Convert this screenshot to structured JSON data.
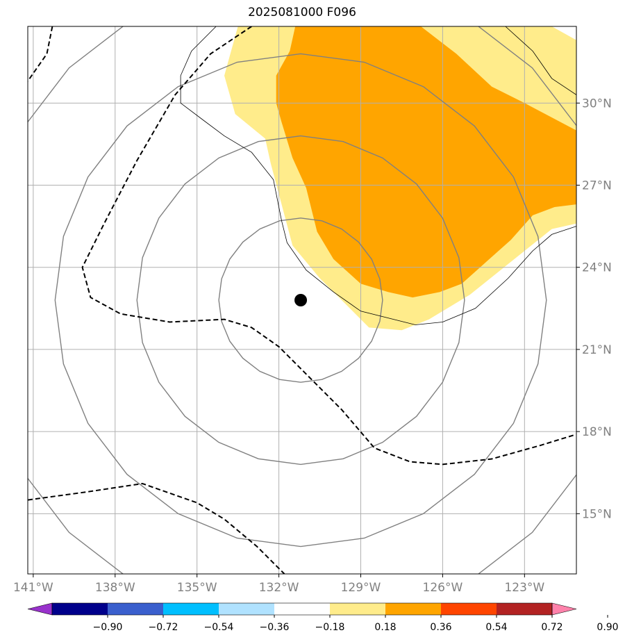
{
  "chart_data": {
    "type": "map-contour",
    "title": "2025081000 F096",
    "x_ticks": [
      "141°W",
      "138°W",
      "135°W",
      "132°W",
      "129°W",
      "126°W",
      "123°W"
    ],
    "x_tick_values": [
      -141,
      -138,
      -135,
      -132,
      -129,
      -126,
      -123
    ],
    "y_ticks": [
      "30°N",
      "27°N",
      "24°N",
      "21°N",
      "18°N",
      "15°N"
    ],
    "y_tick_values": [
      30,
      27,
      24,
      21,
      18,
      15
    ],
    "xlim": [
      -141.2,
      -121.1
    ],
    "ylim": [
      12.8,
      32.8
    ],
    "grid": true,
    "storm_center": {
      "lon": -131.2,
      "lat": 22.8
    },
    "range_rings_deg": [
      3,
      6,
      9,
      12
    ],
    "colorbar": {
      "labels": [
        "−0.90",
        "−0.72",
        "−0.54",
        "−0.36",
        "−0.18",
        "0.18",
        "0.36",
        "0.54",
        "0.72",
        "0.90"
      ],
      "values": [
        -0.9,
        -0.72,
        -0.54,
        -0.36,
        -0.18,
        0.18,
        0.36,
        0.54,
        0.72,
        0.9
      ],
      "colors": [
        "#9932cc",
        "#00008b",
        "#3a5fcd",
        "#00bfff",
        "#b0e2ff",
        "#ffffff",
        "#ffec8b",
        "#ffa500",
        "#ff4500",
        "#b22222",
        "#ff82ab"
      ]
    },
    "filled_regions": [
      {
        "level": "0.18–0.36",
        "color": "#ffec8b",
        "points": [
          [
            -133.5,
            32.8
          ],
          [
            -122,
            32.8
          ],
          [
            -121.1,
            32.3
          ],
          [
            -121.1,
            25.6
          ],
          [
            -122,
            25.4
          ],
          [
            -123,
            24.6
          ],
          [
            -124,
            23.8
          ],
          [
            -125,
            23.0
          ],
          [
            -126.5,
            22.1
          ],
          [
            -127.5,
            21.7
          ],
          [
            -128.7,
            21.8
          ],
          [
            -129.5,
            22.6
          ],
          [
            -130.5,
            23.6
          ],
          [
            -131.5,
            24.8
          ],
          [
            -132.3,
            27.8
          ],
          [
            -132.5,
            28.7
          ],
          [
            -133.6,
            29.6
          ],
          [
            -134.0,
            31.0
          ],
          [
            -133.5,
            32.8
          ]
        ]
      },
      {
        "level": "0.36–0.54",
        "color": "#ffa500",
        "points": [
          [
            -131.4,
            32.8
          ],
          [
            -126.8,
            32.8
          ],
          [
            -125.5,
            31.8
          ],
          [
            -124.2,
            30.6
          ],
          [
            -123.0,
            30.0
          ],
          [
            -121.1,
            29.0
          ],
          [
            -121.1,
            26.3
          ],
          [
            -121.9,
            26.2
          ],
          [
            -122.7,
            25.9
          ],
          [
            -123.5,
            25.0
          ],
          [
            -124.4,
            24.2
          ],
          [
            -125.3,
            23.4
          ],
          [
            -126.1,
            23.1
          ],
          [
            -127.1,
            22.9
          ],
          [
            -128.0,
            23.1
          ],
          [
            -129.0,
            23.4
          ],
          [
            -130.0,
            24.3
          ],
          [
            -130.6,
            25.3
          ],
          [
            -131.0,
            26.9
          ],
          [
            -131.5,
            28.0
          ],
          [
            -131.9,
            29.3
          ],
          [
            -132.1,
            30.0
          ],
          [
            -132.1,
            31.0
          ],
          [
            -131.6,
            31.9
          ],
          [
            -131.4,
            32.8
          ]
        ]
      }
    ],
    "line_contours": [
      {
        "style": "thin-black",
        "points": [
          [
            -134.3,
            32.8
          ],
          [
            -135.2,
            31.9
          ],
          [
            -135.6,
            31.0
          ],
          [
            -135.6,
            30.0
          ],
          [
            -134.8,
            29.4
          ],
          [
            -134.0,
            28.8
          ],
          [
            -133.0,
            28.2
          ],
          [
            -132.2,
            27.2
          ],
          [
            -131.9,
            25.7
          ],
          [
            -131.7,
            24.9
          ],
          [
            -131.0,
            23.9
          ],
          [
            -130.0,
            23.1
          ],
          [
            -129.0,
            22.4
          ],
          [
            -127.0,
            21.9
          ],
          [
            -126.0,
            22.0
          ],
          [
            -124.8,
            22.5
          ],
          [
            -123.6,
            23.6
          ],
          [
            -122.7,
            24.6
          ],
          [
            -122.0,
            25.2
          ],
          [
            -121.1,
            25.5
          ]
        ]
      },
      {
        "style": "thin-black",
        "points": [
          [
            -123.7,
            32.8
          ],
          [
            -122.7,
            31.9
          ],
          [
            -122.0,
            30.9
          ],
          [
            -121.1,
            30.3
          ]
        ]
      },
      {
        "style": "dashed-black",
        "points": [
          [
            -140.3,
            32.8
          ],
          [
            -140.5,
            31.8
          ],
          [
            -141.2,
            30.8
          ]
        ]
      },
      {
        "style": "dashed-black",
        "points": [
          [
            -133.0,
            32.8
          ],
          [
            -134.5,
            31.8
          ],
          [
            -135.8,
            30.3
          ],
          [
            -137.2,
            27.9
          ],
          [
            -138.4,
            25.6
          ],
          [
            -139.2,
            24.0
          ],
          [
            -138.9,
            22.9
          ],
          [
            -137.8,
            22.3
          ],
          [
            -136.0,
            22.0
          ],
          [
            -134.0,
            22.1
          ],
          [
            -133.0,
            21.8
          ],
          [
            -132.0,
            21.1
          ],
          [
            -130.8,
            19.9
          ],
          [
            -129.7,
            18.8
          ],
          [
            -128.5,
            17.4
          ],
          [
            -127.2,
            16.9
          ],
          [
            -126.0,
            16.8
          ],
          [
            -124.2,
            17.0
          ],
          [
            -122.4,
            17.5
          ],
          [
            -121.1,
            17.9
          ]
        ]
      },
      {
        "style": "dashed-black",
        "points": [
          [
            -141.2,
            15.5
          ],
          [
            -139.0,
            15.8
          ],
          [
            -137.0,
            16.1
          ],
          [
            -135.0,
            15.4
          ],
          [
            -134.0,
            14.8
          ],
          [
            -132.8,
            13.8
          ],
          [
            -131.8,
            12.8
          ]
        ]
      }
    ]
  }
}
